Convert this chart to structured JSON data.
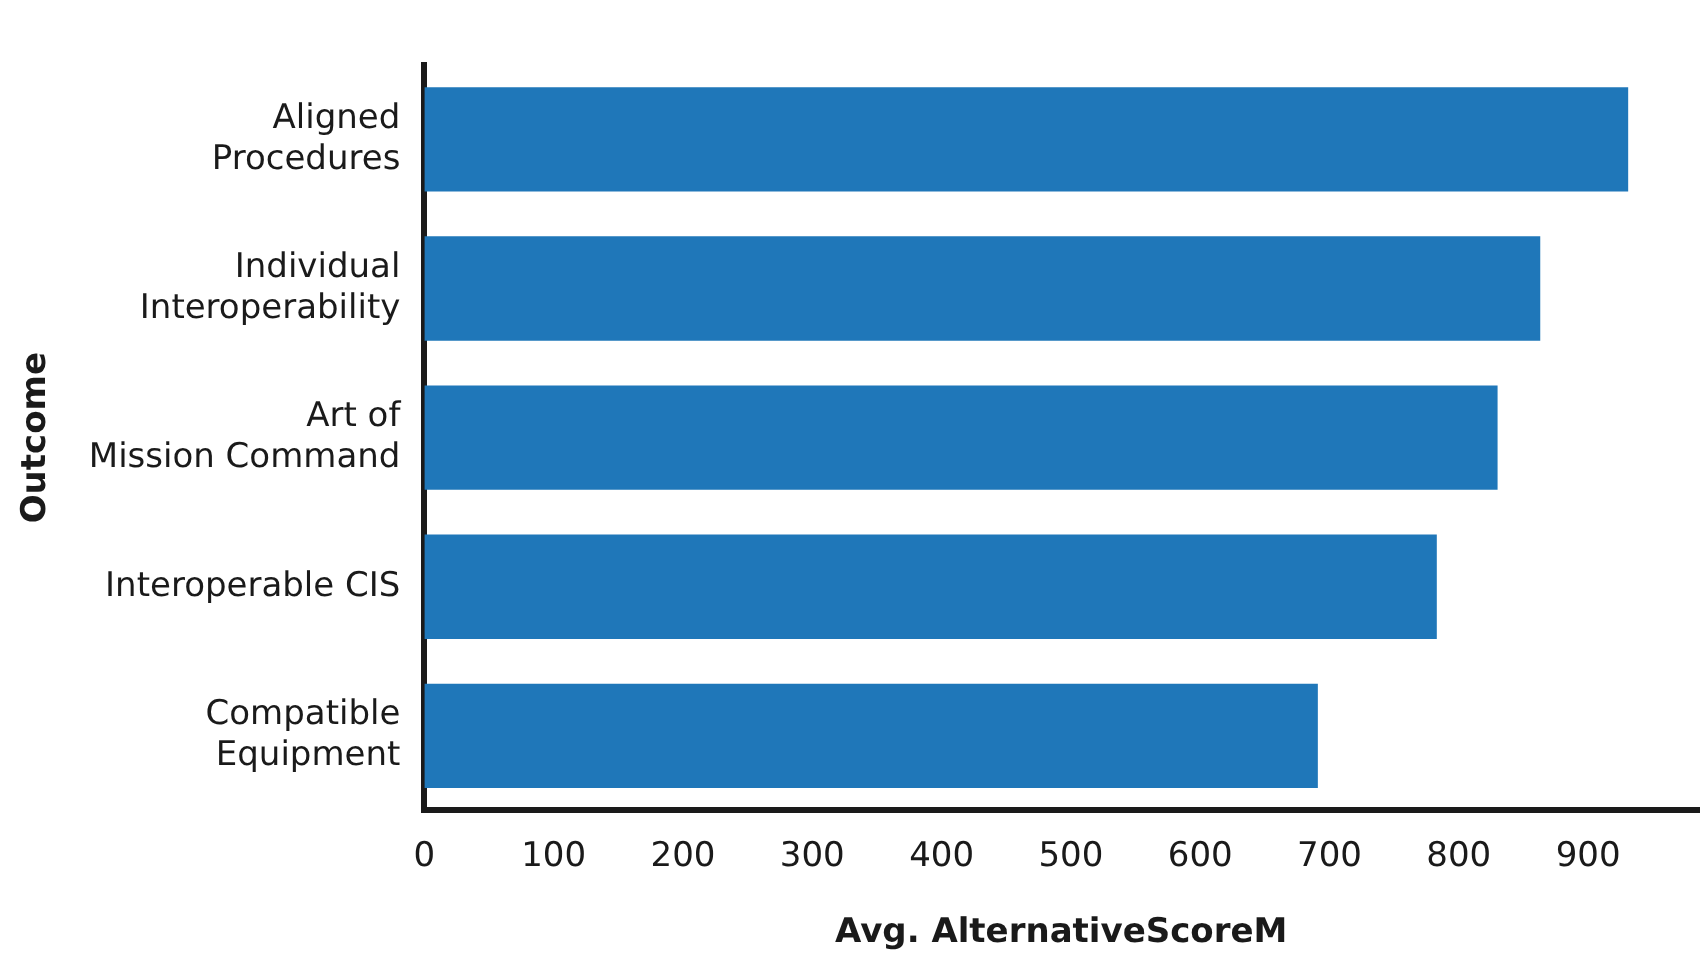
{
  "chart_data": {
    "type": "bar",
    "orientation": "horizontal",
    "xlabel": "Avg. AlternativeScoreM",
    "ylabel": "Outcome",
    "categories": [
      "Aligned\nProcedures",
      "Individual\nInteroperability",
      "Art of\nMission Command",
      "Interoperable CIS",
      "Compatible\nEquipment"
    ],
    "values": [
      931,
      863,
      830,
      783,
      691
    ],
    "color": "#1f77b9",
    "xlim": [
      0,
      985
    ],
    "xticks": [
      0,
      100,
      200,
      300,
      400,
      500,
      600,
      700,
      800,
      900
    ],
    "grid": false,
    "legend": false
  }
}
